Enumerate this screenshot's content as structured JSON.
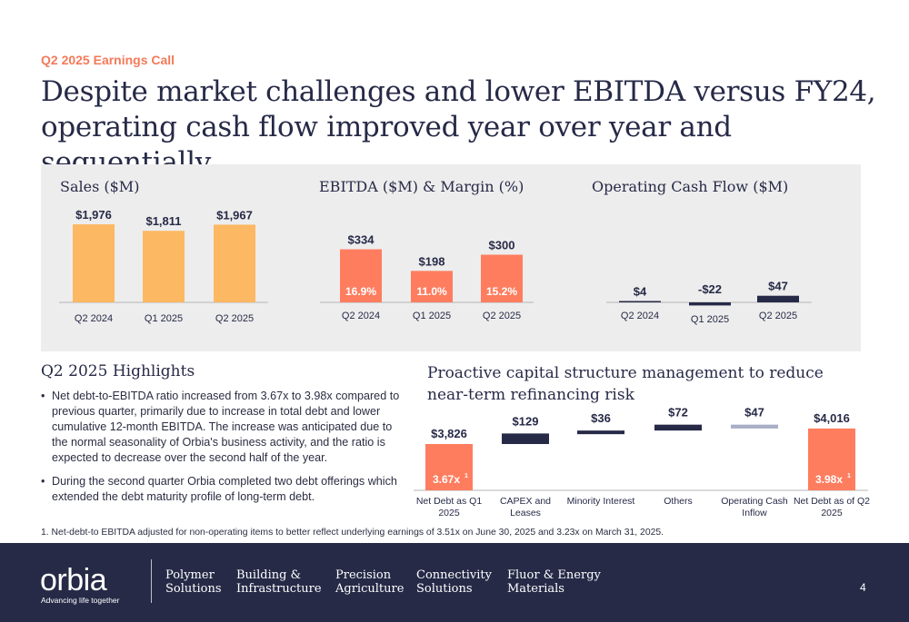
{
  "header": {
    "eyebrow": "Q2 2025 Earnings Call",
    "title": "Despite market challenges and lower EBITDA versus FY24, operating cash flow improved year over year and sequentially"
  },
  "colors": {
    "sales_bar": "#fcb862",
    "ebitda_bar": "#fe7d5f",
    "navy": "#262a47",
    "ocf_bar": "#262a47",
    "ocf_positive_cash": "#a9adc6",
    "panel_bg": "#ededed"
  },
  "chart_data": [
    {
      "id": "sales",
      "type": "bar",
      "title": "Sales ($M)",
      "categories": [
        "Q2 2024",
        "Q1 2025",
        "Q2 2025"
      ],
      "values": [
        1976,
        1811,
        1967
      ],
      "labels": [
        "$1,976",
        "$1,811",
        "$1,967"
      ]
    },
    {
      "id": "ebitda",
      "type": "bar",
      "title": "EBITDA ($M) & Margin (%)",
      "categories": [
        "Q2 2024",
        "Q1 2025",
        "Q2 2025"
      ],
      "values": [
        334,
        198,
        300
      ],
      "labels": [
        "$334",
        "$198",
        "$300"
      ],
      "margins": [
        "16.9%",
        "11.0%",
        "15.2%"
      ]
    },
    {
      "id": "ocf",
      "type": "bar",
      "title": "Operating Cash Flow ($M)",
      "categories": [
        "Q2 2024",
        "Q1 2025",
        "Q2 2025"
      ],
      "values": [
        4,
        -22,
        47
      ],
      "labels": [
        "$4",
        "-$22",
        "$47"
      ]
    },
    {
      "id": "capital",
      "type": "bar",
      "subtype": "waterfall",
      "title": "Proactive capital structure management to reduce near-term refinancing risk",
      "categories": [
        "Net Debt as Q1 2025",
        "CAPEX and Leases",
        "Minority Interest",
        "Others",
        "Operating Cash Inflow",
        "Net Debt as of Q2 2025"
      ],
      "values": [
        3826,
        129,
        36,
        72,
        -47,
        4016
      ],
      "kinds": [
        "total",
        "delta",
        "delta",
        "delta",
        "delta",
        "total"
      ],
      "labels": [
        "$3,826",
        "$129",
        "$36",
        "$72",
        "$47",
        "$4,016"
      ],
      "ratios": [
        "3.67x",
        "",
        "",
        "",
        "",
        "3.98x"
      ],
      "ratio_superscript": "1"
    }
  ],
  "highlights": {
    "title": "Q2 2025 Highlights",
    "bullets": [
      "Net debt-to-EBITDA ratio increased from 3.67x to 3.98x compared to previous quarter, primarily due to increase in total debt and lower cumulative 12-month EBITDA. The increase was anticipated due to the normal seasonality of Orbia's business activity, and the ratio is expected to decrease over the second half of the year.",
      "During the second quarter Orbia completed two debt offerings which extended the debt maturity profile of long-term debt."
    ]
  },
  "footnote": "1. Net-debt-to EBITDA adjusted for non-operating items to better reflect underlying earnings of 3.51x on June 30, 2025 and 3.23x on March 31, 2025.",
  "footer": {
    "logo": "orbia",
    "tagline": "Advancing life together",
    "businesses": [
      "Polymer\nSolutions",
      "Building &\nInfrastructure",
      "Precision\nAgriculture",
      "Connectivity\nSolutions",
      "Fluor & Energy\nMaterials"
    ],
    "page_number": "4"
  }
}
